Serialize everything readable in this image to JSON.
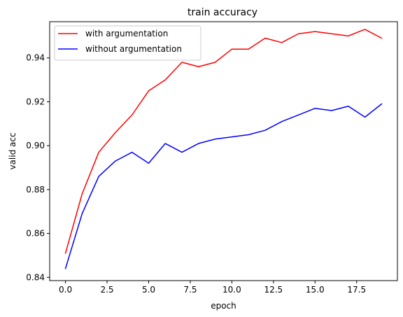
{
  "chart_data": {
    "type": "line",
    "title": "train accuracy",
    "xlabel": "epoch",
    "ylabel": "valid acc",
    "xlim": [
      -0.95,
      19.95
    ],
    "ylim": [
      0.8385,
      0.9565
    ],
    "x_ticks": [
      0.0,
      2.5,
      5.0,
      7.5,
      10.0,
      12.5,
      15.0,
      17.5
    ],
    "x_tick_labels": [
      "0.0",
      "2.5",
      "5.0",
      "7.5",
      "10.0",
      "12.5",
      "15.0",
      "17.5"
    ],
    "y_ticks": [
      0.84,
      0.86,
      0.88,
      0.9,
      0.92,
      0.94
    ],
    "y_tick_labels": [
      "0.84",
      "0.86",
      "0.88",
      "0.90",
      "0.92",
      "0.94"
    ],
    "grid": false,
    "legend_position": "upper-left",
    "x": [
      0,
      1,
      2,
      3,
      4,
      5,
      6,
      7,
      8,
      9,
      10,
      11,
      12,
      13,
      14,
      15,
      16,
      17,
      18,
      19
    ],
    "series": [
      {
        "name": "with argumentation",
        "color": "#ff0000",
        "values": [
          0.851,
          0.878,
          0.897,
          0.906,
          0.914,
          0.925,
          0.93,
          0.938,
          0.936,
          0.938,
          0.944,
          0.944,
          0.949,
          0.947,
          0.951,
          0.952,
          0.951,
          0.95,
          0.953,
          0.949
        ]
      },
      {
        "name": "without argumentation",
        "color": "#0000ff",
        "values": [
          0.844,
          0.869,
          0.886,
          0.893,
          0.897,
          0.892,
          0.901,
          0.897,
          0.901,
          0.903,
          0.904,
          0.905,
          0.907,
          0.911,
          0.914,
          0.917,
          0.916,
          0.918,
          0.913,
          0.919
        ]
      }
    ]
  }
}
